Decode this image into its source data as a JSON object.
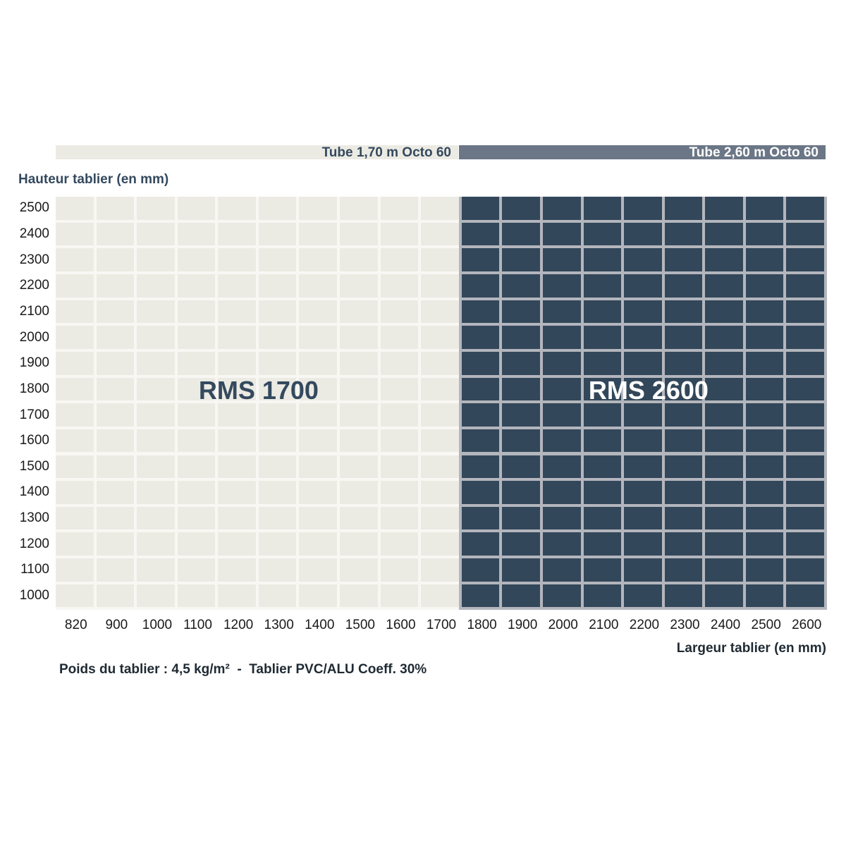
{
  "header": {
    "band_left": "Tube 1,70 m Octo 60",
    "band_right": "Tube 2,60 m Octo 60"
  },
  "footnote": "Poids du tablier : 4,5 kg/m²  -  Tablier PVC/ALU Coeff. 30%",
  "colors": {
    "light_cell": "#ecebe3",
    "light_grid": "#f8f7f3",
    "dark_cell": "#33475a",
    "dark_grid": "#b4b6bd",
    "band_left": "#ecebe3",
    "band_right": "#6b7686",
    "label_dark": "#34495e",
    "label_light": "#ffffff"
  },
  "chart_data": {
    "type": "heatmap",
    "xlabel": "Largeur tablier (en mm)",
    "ylabel": "Hauteur tablier (en mm)",
    "x": [
      "820",
      "900",
      "1000",
      "1100",
      "1200",
      "1300",
      "1400",
      "1500",
      "1600",
      "1700",
      "1800",
      "1900",
      "2000",
      "2100",
      "2200",
      "2300",
      "2400",
      "2500",
      "2600"
    ],
    "y": [
      "2500",
      "2400",
      "2300",
      "2200",
      "2100",
      "2000",
      "1900",
      "1800",
      "1700",
      "1600",
      "1500",
      "1400",
      "1300",
      "1200",
      "1100",
      "1000"
    ],
    "regions": [
      {
        "label": "RMS 1700",
        "x_from": "820",
        "x_to": "1700",
        "y_from": "1000",
        "y_to": "2500",
        "tube": "Tube 1,70 m Octo 60",
        "fill": "light"
      },
      {
        "label": "RMS 2600",
        "x_from": "1800",
        "x_to": "2600",
        "y_from": "1000",
        "y_to": "2500",
        "tube": "Tube 2,60 m Octo 60",
        "fill": "dark"
      }
    ]
  }
}
